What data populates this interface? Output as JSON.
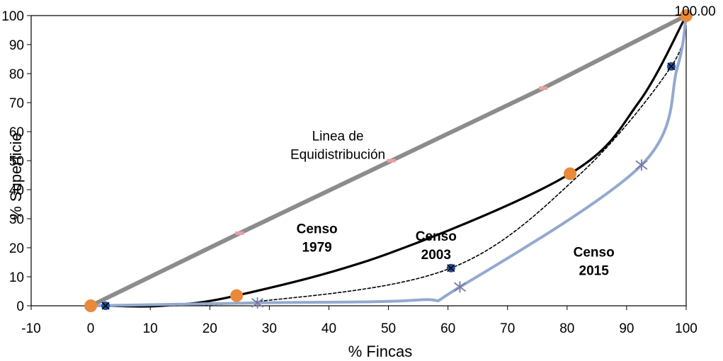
{
  "chart_data": {
    "type": "line",
    "title": "",
    "xlabel": "% Fincas",
    "ylabel": "% Superficie",
    "xlim": [
      -10,
      100
    ],
    "ylim": [
      0,
      100
    ],
    "x_ticks": [
      "-10",
      "0",
      "10",
      "20",
      "30",
      "40",
      "50",
      "60",
      "70",
      "80",
      "90",
      "100"
    ],
    "y_ticks": [
      "0",
      "10",
      "20",
      "30",
      "40",
      "50",
      "60",
      "70",
      "80",
      "90",
      "100"
    ],
    "grid": false,
    "legend": "none",
    "series": [
      {
        "key": "equidistribucion",
        "color": "#8c8c8c",
        "marker_color": "#e8a0a0",
        "points": [
          [
            0,
            0
          ],
          [
            25,
            25
          ],
          [
            50.5,
            50
          ],
          [
            76,
            75
          ],
          [
            100,
            100
          ]
        ],
        "marker_points": [
          [
            25,
            25
          ],
          [
            50.5,
            50
          ],
          [
            76,
            75
          ]
        ]
      },
      {
        "key": "censo1979",
        "color": "#000000",
        "marker_color": "#e88a3a",
        "points": [
          [
            0,
            0
          ],
          [
            3,
            0
          ],
          [
            12,
            0
          ],
          [
            24.5,
            3.5
          ],
          [
            50,
            18
          ],
          [
            80.5,
            45.5
          ],
          [
            92,
            70
          ],
          [
            100,
            100
          ]
        ],
        "marker_points": [
          [
            0,
            0
          ],
          [
            24.5,
            3.5
          ],
          [
            80.5,
            45.5
          ],
          [
            100,
            100
          ]
        ]
      },
      {
        "key": "censo2003",
        "color": "#000000",
        "marker_color": "#1f4e9c",
        "points": [
          [
            0,
            0
          ],
          [
            2.5,
            0
          ],
          [
            28,
            1.5
          ],
          [
            60.5,
            13
          ],
          [
            82,
            45
          ],
          [
            97.5,
            82.5
          ],
          [
            100,
            100
          ]
        ],
        "marker_points": [
          [
            2.5,
            0
          ],
          [
            60.5,
            13
          ],
          [
            97.5,
            82.5
          ]
        ]
      },
      {
        "key": "censo2015",
        "color": "#93a9cf",
        "marker_color": "#7a7aa8",
        "points": [
          [
            0,
            0
          ],
          [
            28,
            1
          ],
          [
            55,
            2
          ],
          [
            62,
            6.5
          ],
          [
            92.5,
            48.5
          ],
          [
            98.5,
            82
          ],
          [
            100,
            100
          ]
        ],
        "marker_points": [
          [
            28,
            1
          ],
          [
            62,
            6.5
          ],
          [
            92.5,
            48.5
          ]
        ]
      }
    ],
    "annotations": [
      {
        "text_lines": [
          "Linea de",
          "Equidistribución"
        ],
        "x": 41.5,
        "y": 57,
        "bold": false
      },
      {
        "text_lines": [
          "Censo",
          "1979"
        ],
        "x": 38,
        "y": 25,
        "bold": true
      },
      {
        "text_lines": [
          "Censo",
          "2003"
        ],
        "x": 58,
        "y": 22.5,
        "bold": true
      },
      {
        "text_lines": [
          "Censo",
          "2015"
        ],
        "x": 84.5,
        "y": 17,
        "bold": true
      },
      {
        "text_lines": [
          "100.00"
        ],
        "x": 101.5,
        "y": 100,
        "bold": false
      }
    ]
  }
}
